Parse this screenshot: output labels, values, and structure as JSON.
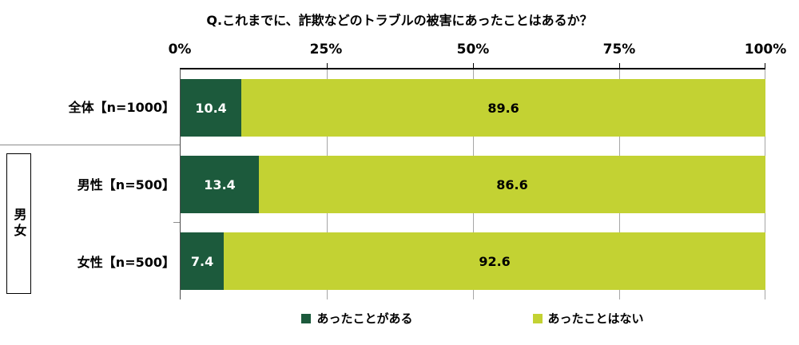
{
  "chart_data": {
    "type": "bar",
    "orientation": "horizontal",
    "stacked": true,
    "stacked_total": 100,
    "title": "Q.これまでに、詐欺などのトラブルの被害にあったことはあるか？",
    "categories": [
      "全体【n=1000】",
      "男性【n=500】",
      "女性【n=500】"
    ],
    "group": {
      "label": "男女",
      "applies_to": [
        "男性【n=500】",
        "女性【n=500】"
      ]
    },
    "series": [
      {
        "name": "あったことがある",
        "color": "#1c5a3c",
        "values": [
          10.4,
          13.4,
          7.4
        ]
      },
      {
        "name": "あったことはない",
        "color": "#c3d233",
        "values": [
          89.6,
          86.6,
          92.6
        ]
      }
    ],
    "x_ticks": [
      "0%",
      "25%",
      "50%",
      "75%",
      "100%"
    ],
    "xlim": [
      0,
      100
    ],
    "grid": true,
    "legend_position": "bottom"
  },
  "colors": {
    "gridline": "#a6a6a6",
    "axis_line": "#000000",
    "value_label_on_dark": "#ffffff",
    "value_label_on_light": "#000000"
  }
}
